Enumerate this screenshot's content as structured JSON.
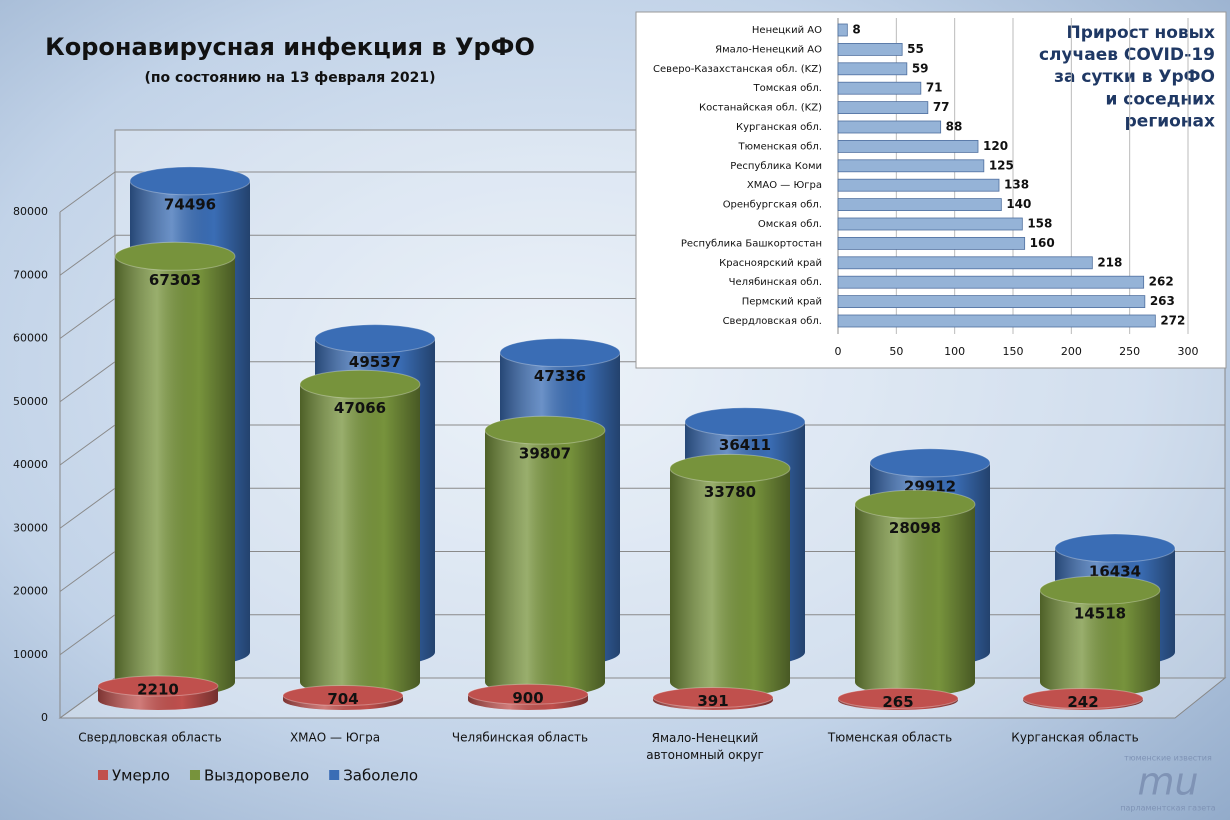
{
  "chart_data": [
    {
      "type": "cylinder",
      "title": "Коронавирусная инфекция в УрФО",
      "subtitle": "(по состоянию на 13 февраля 2021)",
      "categories": [
        "Свердловская область",
        "ХМАО — Югра",
        "Челябинская область",
        "Ямало-Ненецкий\nавтономный округ",
        "Тюменская область",
        "Курганская область"
      ],
      "series": [
        {
          "name": "Умерло",
          "color": "#c0504d",
          "values": [
            2210,
            704,
            900,
            391,
            265,
            242
          ]
        },
        {
          "name": "Выздоровело",
          "color": "#77933c",
          "values": [
            67303,
            47066,
            39807,
            33780,
            28098,
            14518
          ]
        },
        {
          "name": "Заболело",
          "color": "#3a6db5",
          "values": [
            74496,
            49537,
            47336,
            36411,
            29912,
            16434
          ]
        }
      ],
      "ylim": [
        0,
        80000
      ],
      "yticks": [
        0,
        10000,
        20000,
        30000,
        40000,
        50000,
        60000,
        70000,
        80000
      ],
      "grid": true,
      "legend": "bottom-left"
    },
    {
      "type": "barh",
      "title": "Прирост новых\nслучаев COVID-19\nза сутки в УрФО\nи соседних\nрегионах",
      "categories": [
        "Ненецкий АО",
        "Ямало-Ненецкий АО",
        "Северо-Казахстанская обл. (KZ)",
        "Томская обл.",
        "Костанайская обл. (KZ)",
        "Курганская обл.",
        "Тюменская обл.",
        "Республика Коми",
        "ХМАО — Югра",
        "Оренбургская обл.",
        "Омская обл.",
        "Республика Башкортостан",
        "Красноярский край",
        "Челябинская обл.",
        "Пермский край",
        "Свердловская обл."
      ],
      "values": [
        8,
        55,
        59,
        71,
        77,
        88,
        120,
        125,
        138,
        140,
        158,
        160,
        218,
        262,
        263,
        272
      ],
      "color": "#95b3d7",
      "xlim": [
        0,
        300
      ],
      "xticks": [
        0,
        50,
        100,
        150,
        200,
        250,
        300
      ],
      "grid": true
    }
  ],
  "logo": {
    "top": "тюменские известия",
    "mark": "mu",
    "bottom": "парламентская газета"
  }
}
